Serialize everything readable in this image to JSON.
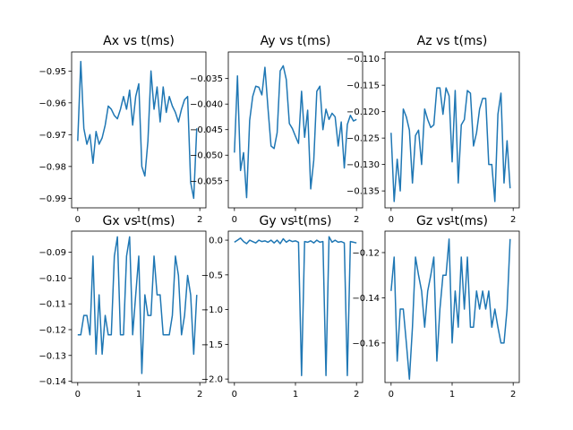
{
  "chart_data": [
    {
      "type": "line",
      "title": "Ax vs t(ms)",
      "xlabel": "",
      "ylabel": "",
      "xlim": [
        -0.1,
        2.1
      ],
      "ylim": [
        -0.993,
        -0.944
      ],
      "xticks": [
        0,
        1,
        2
      ],
      "yticks": [
        -0.99,
        -0.98,
        -0.97,
        -0.96,
        -0.95
      ],
      "ytick_labels": [
        "−0.99",
        "−0.98",
        "−0.97",
        "−0.96",
        "−0.95"
      ],
      "grid": false,
      "color": "#1f77b4",
      "x": [
        0.0,
        0.05,
        0.1,
        0.15,
        0.2,
        0.25,
        0.3,
        0.35,
        0.4,
        0.45,
        0.5,
        0.55,
        0.6,
        0.65,
        0.7,
        0.75,
        0.8,
        0.85,
        0.9,
        0.95,
        1.0,
        1.05,
        1.1,
        1.15,
        1.2,
        1.25,
        1.3,
        1.35,
        1.4,
        1.45,
        1.5,
        1.55,
        1.6,
        1.65,
        1.7,
        1.75,
        1.8,
        1.85,
        1.9,
        1.95
      ],
      "y": [
        -0.972,
        -0.947,
        -0.968,
        -0.973,
        -0.97,
        -0.979,
        -0.969,
        -0.973,
        -0.971,
        -0.967,
        -0.961,
        -0.962,
        -0.964,
        -0.965,
        -0.962,
        -0.958,
        -0.962,
        -0.956,
        -0.967,
        -0.958,
        -0.954,
        -0.98,
        -0.983,
        -0.972,
        -0.95,
        -0.962,
        -0.955,
        -0.966,
        -0.955,
        -0.963,
        -0.958,
        -0.961,
        -0.963,
        -0.966,
        -0.962,
        -0.959,
        -0.958,
        -0.985,
        -0.99,
        -0.968
      ]
    },
    {
      "type": "line",
      "title": "Ay vs t(ms)",
      "xlabel": "",
      "ylabel": "",
      "xlim": [
        -0.1,
        2.1
      ],
      "ylim": [
        -0.0603,
        -0.0298
      ],
      "xticks": [
        0,
        1,
        2
      ],
      "yticks": [
        -0.055,
        -0.05,
        -0.045,
        -0.04,
        -0.035
      ],
      "ytick_labels": [
        "−0.055",
        "−0.050",
        "−0.045",
        "−0.040",
        "−0.035"
      ],
      "grid": false,
      "color": "#1f77b4",
      "x": [
        0.0,
        0.05,
        0.1,
        0.15,
        0.2,
        0.25,
        0.3,
        0.35,
        0.4,
        0.45,
        0.5,
        0.55,
        0.6,
        0.65,
        0.7,
        0.75,
        0.8,
        0.85,
        0.9,
        0.95,
        1.0,
        1.05,
        1.1,
        1.15,
        1.2,
        1.25,
        1.3,
        1.35,
        1.4,
        1.45,
        1.5,
        1.55,
        1.6,
        1.65,
        1.7,
        1.75,
        1.8,
        1.85,
        1.9,
        1.95,
        2.0
      ],
      "y": [
        -0.0495,
        -0.0345,
        -0.053,
        -0.0495,
        -0.0583,
        -0.0432,
        -0.0385,
        -0.0365,
        -0.0367,
        -0.0382,
        -0.0328,
        -0.0408,
        -0.0482,
        -0.0487,
        -0.0456,
        -0.0335,
        -0.0325,
        -0.0352,
        -0.0438,
        -0.0448,
        -0.0463,
        -0.0477,
        -0.0375,
        -0.0465,
        -0.0412,
        -0.0566,
        -0.051,
        -0.0375,
        -0.0365,
        -0.045,
        -0.041,
        -0.043,
        -0.0418,
        -0.0425,
        -0.0482,
        -0.0435,
        -0.0525,
        -0.044,
        -0.0422,
        -0.0433,
        -0.043
      ]
    },
    {
      "type": "line",
      "title": "Az vs t(ms)",
      "xlabel": "",
      "ylabel": "",
      "xlim": [
        -0.1,
        2.1
      ],
      "ylim": [
        -0.1382,
        -0.1087
      ],
      "xticks": [
        0,
        1,
        2
      ],
      "yticks": [
        -0.135,
        -0.13,
        -0.125,
        -0.12,
        -0.115,
        -0.11
      ],
      "ytick_labels": [
        "−0.135",
        "−0.130",
        "−0.125",
        "−0.120",
        "−0.115",
        "−0.110"
      ],
      "grid": false,
      "color": "#1f77b4",
      "x": [
        0.0,
        0.05,
        0.1,
        0.15,
        0.2,
        0.25,
        0.3,
        0.35,
        0.4,
        0.45,
        0.5,
        0.55,
        0.6,
        0.65,
        0.7,
        0.75,
        0.8,
        0.85,
        0.9,
        0.95,
        1.0,
        1.05,
        1.1,
        1.15,
        1.2,
        1.25,
        1.3,
        1.35,
        1.4,
        1.45,
        1.5,
        1.55,
        1.6,
        1.65,
        1.7,
        1.75,
        1.8,
        1.85,
        1.9,
        1.95
      ],
      "y": [
        -0.124,
        -0.137,
        -0.129,
        -0.135,
        -0.1195,
        -0.121,
        -0.1235,
        -0.1335,
        -0.1245,
        -0.1235,
        -0.13,
        -0.1195,
        -0.1215,
        -0.123,
        -0.1225,
        -0.1155,
        -0.1155,
        -0.1205,
        -0.1155,
        -0.117,
        -0.1295,
        -0.116,
        -0.1335,
        -0.1225,
        -0.1215,
        -0.116,
        -0.1165,
        -0.1265,
        -0.124,
        -0.1195,
        -0.1175,
        -0.1175,
        -0.13,
        -0.13,
        -0.137,
        -0.1205,
        -0.1165,
        -0.1335,
        -0.1255,
        -0.1345
      ]
    },
    {
      "type": "line",
      "title": "Gx vs t(ms)",
      "xlabel": "",
      "ylabel": "",
      "xlim": [
        -0.1,
        2.1
      ],
      "ylim": [
        -0.1405,
        -0.0818
      ],
      "xticks": [
        0,
        1,
        2
      ],
      "yticks": [
        -0.14,
        -0.13,
        -0.12,
        -0.11,
        -0.1,
        -0.09
      ],
      "ytick_labels": [
        "−0.14",
        "−0.13",
        "−0.12",
        "−0.11",
        "−0.10",
        "−0.09"
      ],
      "grid": false,
      "color": "#1f77b4",
      "x": [
        0.0,
        0.05,
        0.1,
        0.15,
        0.2,
        0.25,
        0.3,
        0.35,
        0.4,
        0.45,
        0.5,
        0.55,
        0.6,
        0.65,
        0.7,
        0.75,
        0.8,
        0.85,
        0.9,
        0.95,
        1.0,
        1.05,
        1.1,
        1.15,
        1.2,
        1.25,
        1.3,
        1.35,
        1.4,
        1.45,
        1.5,
        1.55,
        1.6,
        1.65,
        1.7,
        1.75,
        1.8,
        1.85,
        1.9,
        1.95
      ],
      "y": [
        -0.122,
        -0.122,
        -0.1145,
        -0.1145,
        -0.122,
        -0.0915,
        -0.1295,
        -0.1065,
        -0.1295,
        -0.1145,
        -0.122,
        -0.122,
        -0.0915,
        -0.084,
        -0.122,
        -0.122,
        -0.0915,
        -0.084,
        -0.122,
        -0.1065,
        -0.0915,
        -0.137,
        -0.1065,
        -0.1145,
        -0.1145,
        -0.0915,
        -0.1065,
        -0.1065,
        -0.122,
        -0.122,
        -0.122,
        -0.1145,
        -0.0915,
        -0.099,
        -0.122,
        -0.1145,
        -0.099,
        -0.1065,
        -0.1295,
        -0.1065
      ]
    },
    {
      "type": "line",
      "title": "Gy vs t(ms)",
      "xlabel": "",
      "ylabel": "",
      "xlim": [
        -0.1,
        2.1
      ],
      "ylim": [
        -2.05,
        0.13
      ],
      "xticks": [
        0,
        1,
        2
      ],
      "yticks": [
        -2.0,
        -1.5,
        -1.0,
        -0.5,
        0.0
      ],
      "ytick_labels": [
        "−2.0",
        "−1.5",
        "−1.0",
        "−0.5",
        "0.0"
      ],
      "grid": false,
      "color": "#1f77b4",
      "x": [
        0.0,
        0.05,
        0.1,
        0.15,
        0.2,
        0.25,
        0.3,
        0.35,
        0.4,
        0.45,
        0.5,
        0.55,
        0.6,
        0.65,
        0.7,
        0.75,
        0.8,
        0.85,
        0.9,
        0.95,
        1.0,
        1.05,
        1.1,
        1.15,
        1.2,
        1.25,
        1.3,
        1.35,
        1.4,
        1.45,
        1.5,
        1.55,
        1.6,
        1.65,
        1.7,
        1.75,
        1.8,
        1.85,
        1.9,
        1.95,
        2.0
      ],
      "y": [
        -0.03,
        0.0,
        0.03,
        -0.02,
        -0.05,
        0.0,
        -0.02,
        -0.04,
        0.0,
        -0.02,
        -0.01,
        -0.03,
        0.0,
        -0.04,
        0.0,
        -0.05,
        0.02,
        -0.03,
        0.0,
        -0.02,
        -0.01,
        -0.03,
        -1.95,
        -0.02,
        -0.03,
        -0.01,
        -0.04,
        0.0,
        -0.03,
        -0.02,
        -1.95,
        0.05,
        -0.03,
        0.0,
        -0.03,
        -0.02,
        -0.04,
        -1.95,
        -0.02,
        -0.03,
        -0.04
      ]
    },
    {
      "type": "line",
      "title": "Gz vs t(ms)",
      "xlabel": "",
      "ylabel": "",
      "xlim": [
        -0.1,
        2.1
      ],
      "ylim": [
        -0.1775,
        -0.1105
      ],
      "xticks": [
        0,
        1,
        2
      ],
      "yticks": [
        -0.16,
        -0.14,
        -0.12
      ],
      "ytick_labels": [
        "−0.16",
        "−0.14",
        "−0.12"
      ],
      "grid": false,
      "color": "#1f77b4",
      "x": [
        0.0,
        0.05,
        0.1,
        0.15,
        0.2,
        0.25,
        0.3,
        0.35,
        0.4,
        0.45,
        0.5,
        0.55,
        0.6,
        0.65,
        0.7,
        0.75,
        0.8,
        0.85,
        0.9,
        0.95,
        1.0,
        1.05,
        1.1,
        1.15,
        1.2,
        1.25,
        1.3,
        1.35,
        1.4,
        1.45,
        1.5,
        1.55,
        1.6,
        1.65,
        1.7,
        1.75,
        1.8,
        1.85,
        1.9,
        1.95
      ],
      "y": [
        -0.137,
        -0.122,
        -0.168,
        -0.145,
        -0.145,
        -0.16,
        -0.176,
        -0.153,
        -0.122,
        -0.13,
        -0.137,
        -0.153,
        -0.137,
        -0.13,
        -0.122,
        -0.168,
        -0.145,
        -0.13,
        -0.13,
        -0.114,
        -0.16,
        -0.137,
        -0.153,
        -0.122,
        -0.145,
        -0.122,
        -0.153,
        -0.153,
        -0.137,
        -0.145,
        -0.137,
        -0.145,
        -0.137,
        -0.153,
        -0.145,
        -0.153,
        -0.16,
        -0.16,
        -0.145,
        -0.114
      ]
    }
  ]
}
